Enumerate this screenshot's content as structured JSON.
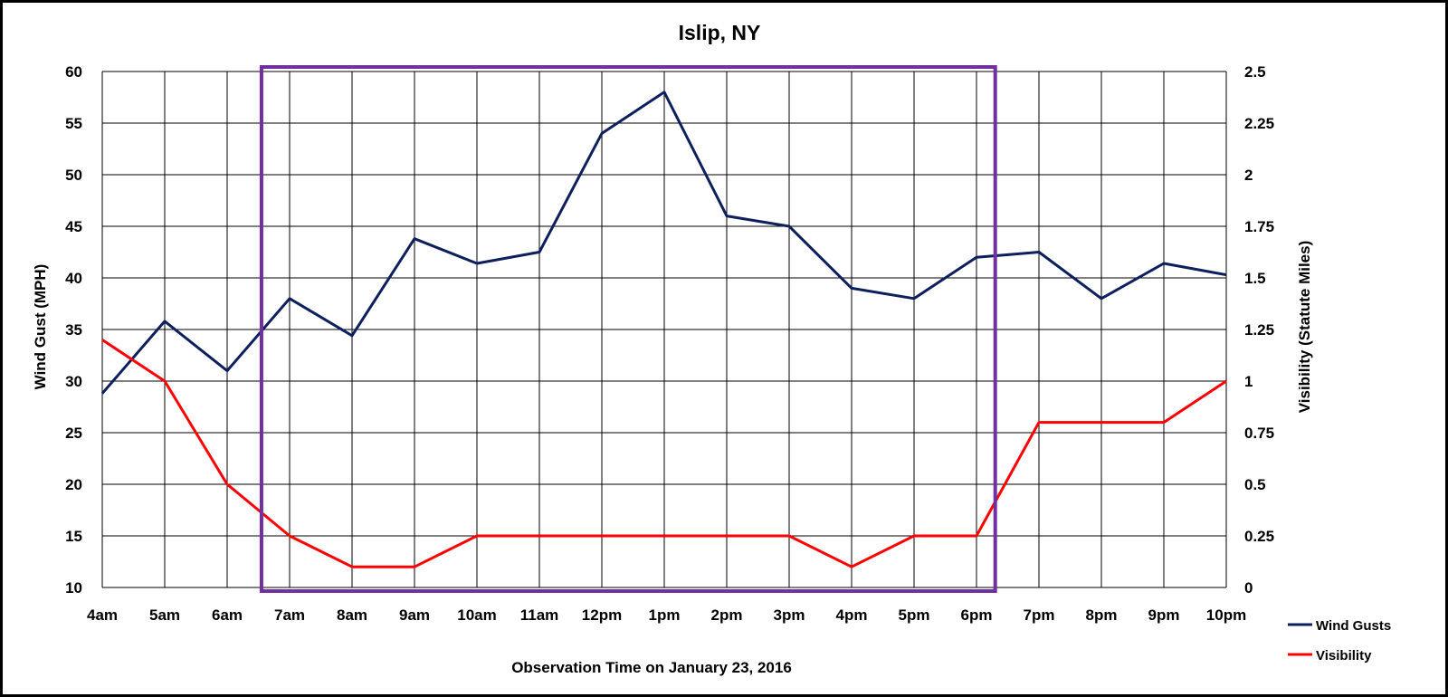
{
  "chart_data": {
    "type": "line",
    "title": "Islip, NY",
    "xlabel": "Observation Time on January 23, 2016",
    "ylabel": "Wind Gust (MPH)",
    "y2label": "Visibility (Statute Miles)",
    "categories": [
      "4am",
      "5am",
      "6am",
      "7am",
      "8am",
      "9am",
      "10am",
      "11am",
      "12pm",
      "1pm",
      "2pm",
      "3pm",
      "4pm",
      "5pm",
      "6pm",
      "7pm",
      "8pm",
      "9pm",
      "10pm"
    ],
    "ylim": [
      10,
      60
    ],
    "y2lim": [
      0,
      2.5
    ],
    "yticks": [
      "10",
      "15",
      "20",
      "25",
      "30",
      "35",
      "40",
      "45",
      "50",
      "55",
      "60"
    ],
    "y2ticks": [
      "0",
      "0.25",
      "0.5",
      "0.75",
      "1",
      "1.25",
      "1.5",
      "1.75",
      "2",
      "2.25",
      "2.5"
    ],
    "grid": true,
    "legend_position": "bottom-right",
    "highlight_box": {
      "from": "7am",
      "to": "6pm",
      "color": "#7030a0"
    },
    "series": [
      {
        "name": "Wind Gusts",
        "axis": "left",
        "color": "#0d1f5c",
        "values": [
          28.8,
          35.8,
          31,
          38,
          34.4,
          43.8,
          41.4,
          42.5,
          54,
          58,
          46,
          45,
          39,
          38,
          42,
          42.5,
          38,
          41.4,
          40.3
        ]
      },
      {
        "name": "Visibility",
        "axis": "right",
        "color": "#ff0000",
        "values": [
          1.2,
          1.0,
          0.5,
          0.25,
          0.1,
          0.1,
          0.25,
          0.25,
          0.25,
          0.25,
          0.25,
          0.25,
          0.1,
          0.25,
          0.25,
          0.8,
          0.8,
          0.8,
          1.0
        ]
      }
    ]
  }
}
